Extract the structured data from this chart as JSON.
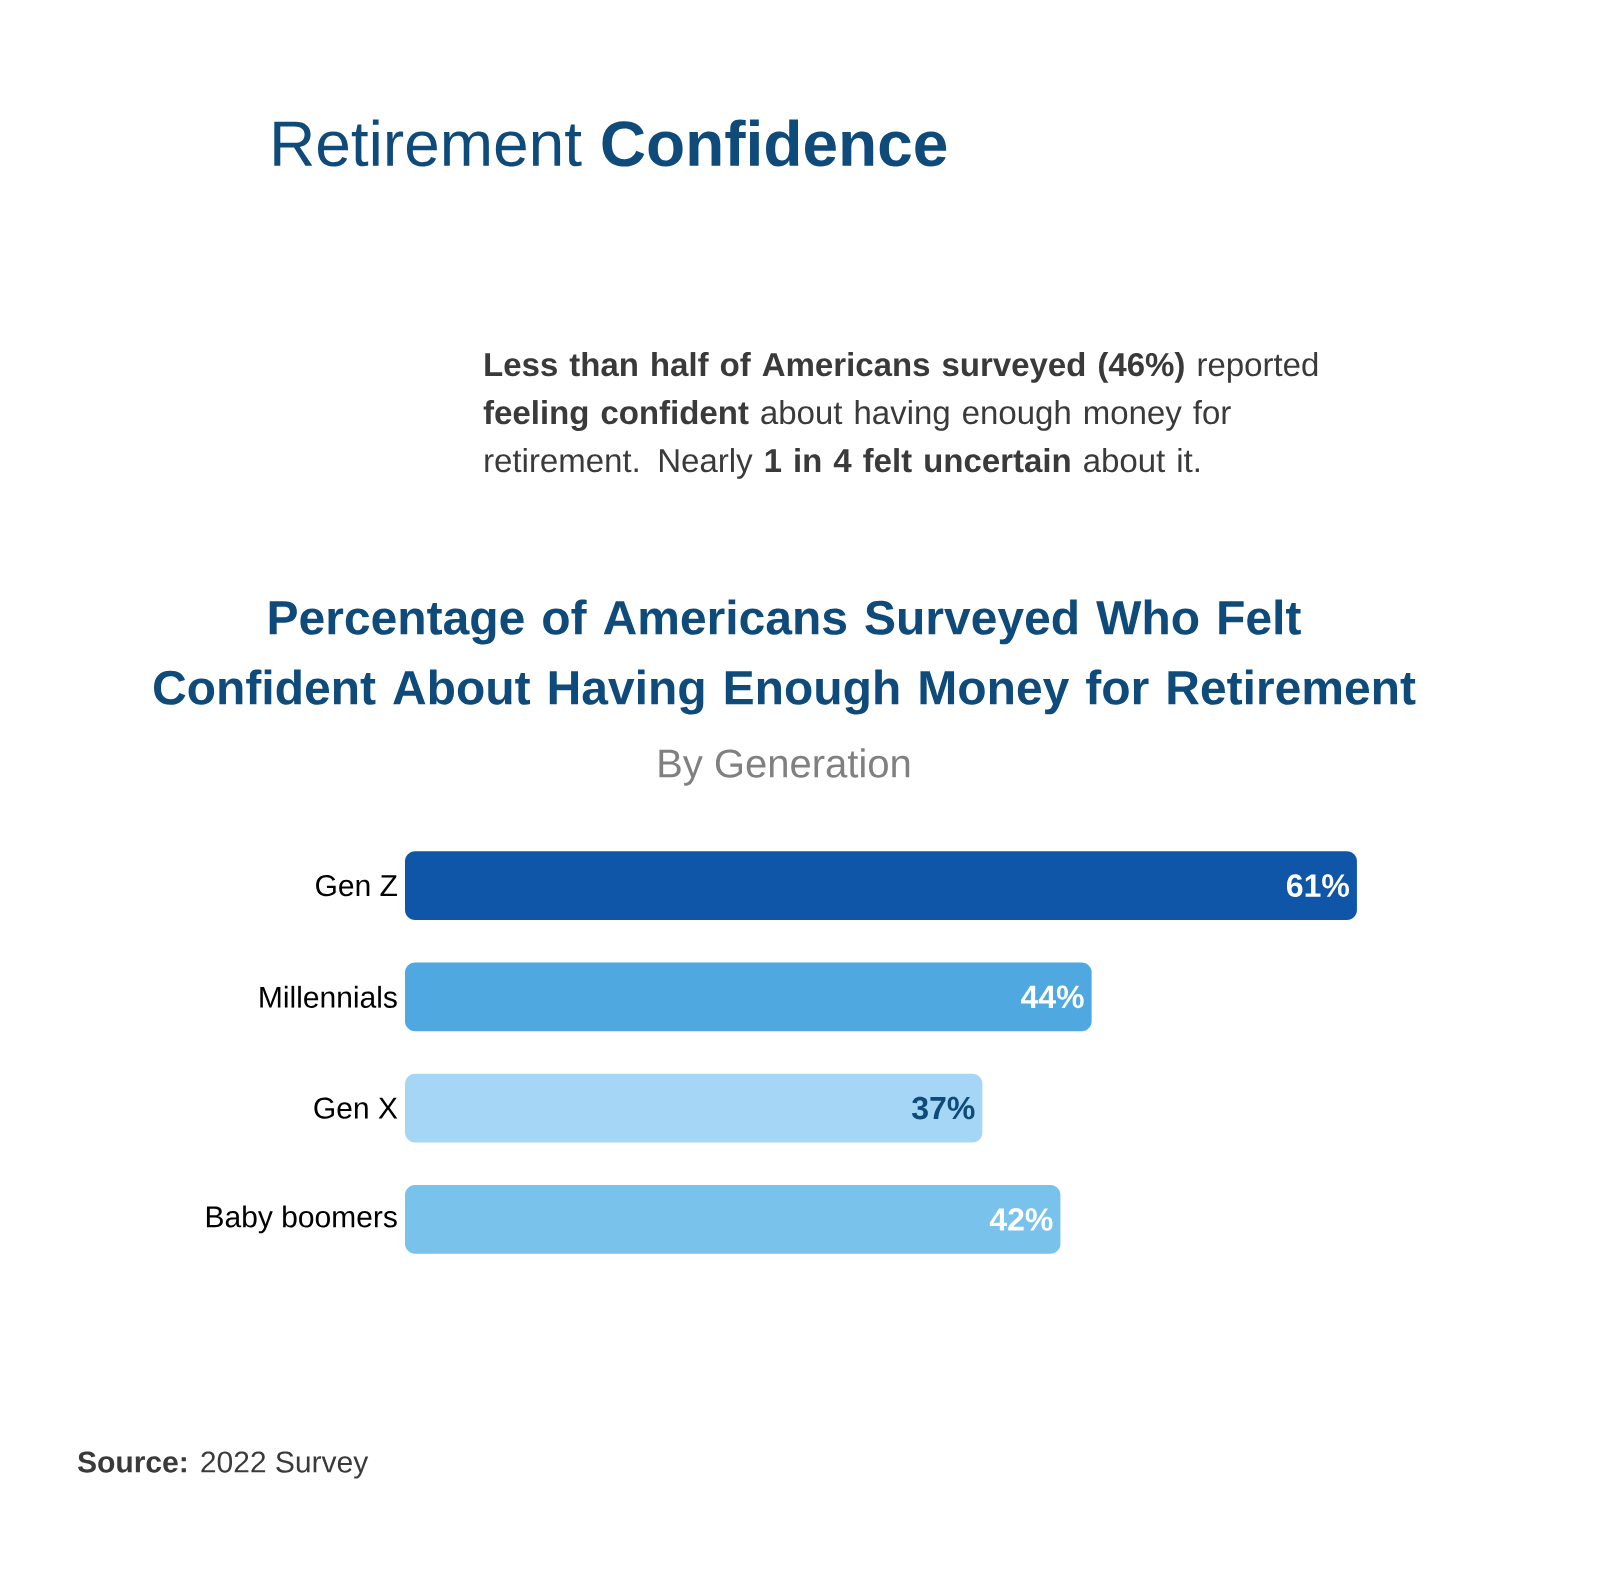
{
  "chart_data": {
    "type": "bar",
    "orientation": "horizontal",
    "title": "Percentage of Americans Surveyed Who Felt Confident About Having Enough Money for Retirement",
    "subtitle": "By Generation",
    "categories": [
      "Gen Z",
      "Millennials",
      "Gen X",
      "Baby boomers"
    ],
    "values": [
      61,
      44,
      37,
      42
    ],
    "value_labels": [
      "61%",
      "44%",
      "37%",
      "42%"
    ],
    "colors": [
      "#0f56a8",
      "#4fa9e0",
      "#a6d6f6",
      "#78c2ec"
    ],
    "tick_labels": "y",
    "annotations": [
      "Retirement **Confidence**",
      "**Less than half of Americans surveyed (46%)** reported **feeling confident** about having enough money for retirement. Nearly **1 in 4 felt uncertain** about it.",
      "**Source:** 2022 Survey"
    ]
  }
}
